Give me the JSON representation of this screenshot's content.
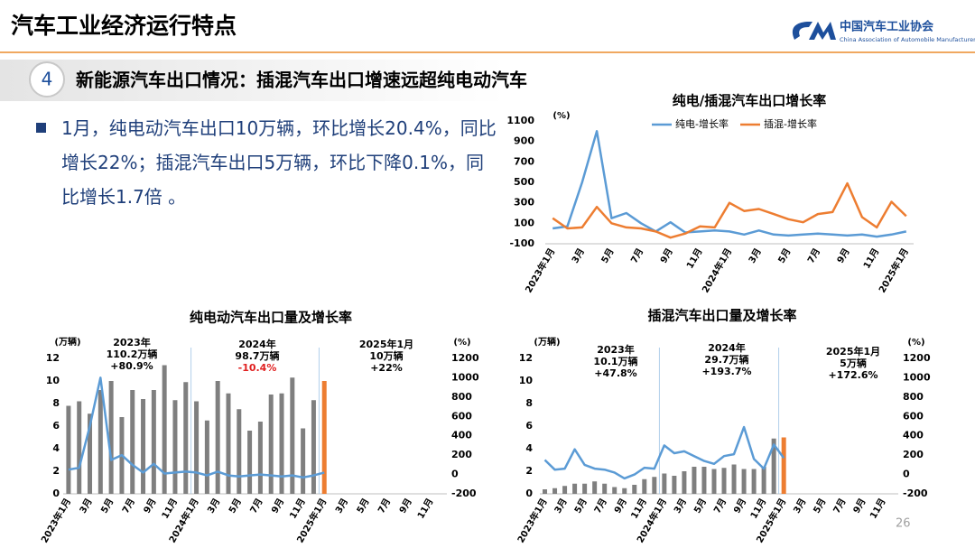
{
  "header": {
    "title": "汽车工业经济运行特点",
    "logo_name": "中国汽车工业协会",
    "logo_english": "China Association of Automobile Manufacturers"
  },
  "section": {
    "number": "4",
    "title": "新能源汽车出口情况：插混汽车出口增速远超纯电动汽车"
  },
  "bullet": "1月，纯电动汽车出口10万辆，环比增长20.4%，同比增长22%；插混汽车出口5万辆，环比下降0.1%，同比增长1.7倍 。",
  "page_number": "26",
  "chart_data": [
    {
      "type": "line",
      "title": "纯电/插混汽车出口增长率",
      "y_label": "(%)",
      "categories": [
        "2023年1月",
        null,
        "3月",
        null,
        "5月",
        null,
        "7月",
        null,
        "9月",
        null,
        "11月",
        null,
        "2024年1月",
        null,
        "3月",
        null,
        "5月",
        null,
        "7月",
        null,
        "9月",
        null,
        "11月",
        null,
        "2025年1月"
      ],
      "ylim": [
        -100,
        1100
      ],
      "yticks": [
        -100,
        100,
        300,
        500,
        700,
        900,
        1100
      ],
      "series": [
        {
          "name": "纯电-增长率",
          "color": "#5b9bd5",
          "values": [
            50,
            70,
            500,
            1000,
            150,
            200,
            100,
            20,
            110,
            10,
            20,
            30,
            20,
            -10,
            30,
            -10,
            -20,
            -10,
            0,
            -10,
            -20,
            -10,
            -30,
            -10,
            20
          ]
        },
        {
          "name": "插混-增长率",
          "color": "#ed7d31",
          "values": [
            150,
            50,
            60,
            260,
            100,
            60,
            50,
            20,
            -40,
            0,
            70,
            60,
            300,
            220,
            240,
            190,
            140,
            110,
            190,
            210,
            490,
            160,
            60,
            310,
            170
          ]
        }
      ]
    },
    {
      "type": "combo",
      "title": "纯电动汽车出口量及增长率",
      "y_label": "(万辆)",
      "y2_label": "(%)",
      "categories": [
        "2023年1月",
        null,
        "3月",
        null,
        "5月",
        null,
        "7月",
        null,
        "9月",
        null,
        "11月",
        null,
        "2024年1月",
        null,
        "3月",
        null,
        "5月",
        null,
        "7月",
        null,
        "9月",
        null,
        "11月",
        null,
        "2025年1月",
        null,
        "3月",
        null,
        "5月",
        null,
        "7月",
        null,
        "9月",
        null,
        "11月",
        null
      ],
      "ylim": [
        0,
        12
      ],
      "yticks": [
        0,
        2,
        4,
        6,
        8,
        10,
        12
      ],
      "y2lim": [
        -200,
        1200
      ],
      "y2ticks": [
        -200,
        0,
        200,
        400,
        600,
        800,
        1000,
        1200
      ],
      "series": [
        {
          "color": "#7f7f7f",
          "values": [
            7.8,
            8.2,
            7.1,
            9.2,
            10.0,
            6.8,
            9.2,
            8.4,
            9.2,
            11.4,
            8.3,
            9.9,
            8.2,
            6.5,
            10.0,
            8.9,
            7.5,
            5.6,
            6.4,
            8.8,
            8.9,
            10.3,
            5.8,
            8.3,
            null,
            null,
            null,
            null,
            null,
            null,
            null,
            null,
            null,
            null,
            null,
            null
          ]
        },
        {
          "color": "#ed7d31",
          "values": [
            null,
            null,
            null,
            null,
            null,
            null,
            null,
            null,
            null,
            null,
            null,
            null,
            null,
            null,
            null,
            null,
            null,
            null,
            null,
            null,
            null,
            null,
            null,
            null,
            10,
            null,
            null,
            null,
            null,
            null,
            null,
            null,
            null,
            null,
            null,
            null
          ]
        },
        {
          "color": "#5b9bd5",
          "axis": "y2",
          "values": [
            50,
            70,
            500,
            1000,
            150,
            200,
            100,
            20,
            110,
            10,
            20,
            30,
            20,
            -10,
            30,
            -10,
            -20,
            -10,
            0,
            -10,
            -20,
            -10,
            -30,
            -10,
            20,
            null,
            null,
            null,
            null,
            null,
            null,
            null,
            null,
            null,
            null,
            null
          ]
        }
      ],
      "annotations": [
        {
          "lines": [
            {
              "text": "2023年"
            },
            {
              "text": "110.2万辆"
            },
            {
              "text": "+80.9%"
            }
          ]
        },
        {
          "lines": [
            {
              "text": "2024年"
            },
            {
              "text": "98.7万辆"
            },
            {
              "text": "-10.4%",
              "color": "#e02020"
            }
          ]
        },
        {
          "lines": [
            {
              "text": "2025年1月"
            },
            {
              "text": "10万辆"
            },
            {
              "text": "+22%"
            }
          ]
        }
      ]
    },
    {
      "type": "combo",
      "title": "插混汽车出口量及增长率",
      "y_label": "(万辆)",
      "y2_label": "(%)",
      "categories": [
        "2023年1月",
        null,
        "3月",
        null,
        "5月",
        null,
        "7月",
        null,
        "9月",
        null,
        "11月",
        null,
        "2024年1月",
        null,
        "3月",
        null,
        "5月",
        null,
        "7月",
        null,
        "9月",
        null,
        "11月",
        null,
        "2025年1月",
        null,
        "3月",
        null,
        "5月",
        null,
        "7月",
        null,
        "9月",
        null,
        "11月",
        null
      ],
      "ylim": [
        0,
        12
      ],
      "yticks": [
        0,
        2,
        4,
        6,
        8,
        10,
        12
      ],
      "y2lim": [
        -200,
        1200
      ],
      "y2ticks": [
        -200,
        0,
        200,
        400,
        600,
        800,
        1000,
        1200
      ],
      "series": [
        {
          "color": "#7f7f7f",
          "values": [
            0.4,
            0.5,
            0.7,
            0.9,
            0.9,
            1.1,
            0.9,
            0.6,
            0.5,
            0.8,
            1.3,
            1.5,
            1.8,
            1.6,
            2.0,
            2.4,
            2.4,
            2.2,
            2.3,
            2.6,
            2.2,
            2.2,
            2.4,
            4.9,
            null,
            null,
            null,
            null,
            null,
            null,
            null,
            null,
            null,
            null,
            null,
            null
          ]
        },
        {
          "color": "#ed7d31",
          "values": [
            null,
            null,
            null,
            null,
            null,
            null,
            null,
            null,
            null,
            null,
            null,
            null,
            null,
            null,
            null,
            null,
            null,
            null,
            null,
            null,
            null,
            null,
            null,
            null,
            5,
            null,
            null,
            null,
            null,
            null,
            null,
            null,
            null,
            null,
            null,
            null
          ]
        },
        {
          "color": "#5b9bd5",
          "axis": "y2",
          "values": [
            150,
            50,
            60,
            260,
            100,
            60,
            50,
            20,
            -40,
            0,
            70,
            60,
            300,
            220,
            240,
            190,
            140,
            110,
            190,
            210,
            490,
            160,
            60,
            310,
            170,
            null,
            null,
            null,
            null,
            null,
            null,
            null,
            null,
            null,
            null,
            null
          ]
        }
      ],
      "annotations": [
        {
          "lines": [
            {
              "text": "2023年"
            },
            {
              "text": "10.1万辆"
            },
            {
              "text": "+47.8%"
            }
          ]
        },
        {
          "lines": [
            {
              "text": "2024年"
            },
            {
              "text": "29.7万辆"
            },
            {
              "text": "+193.7%"
            }
          ]
        },
        {
          "lines": [
            {
              "text": "2025年1月"
            },
            {
              "text": "5万辆"
            },
            {
              "text": "+172.6%"
            }
          ]
        }
      ]
    }
  ]
}
